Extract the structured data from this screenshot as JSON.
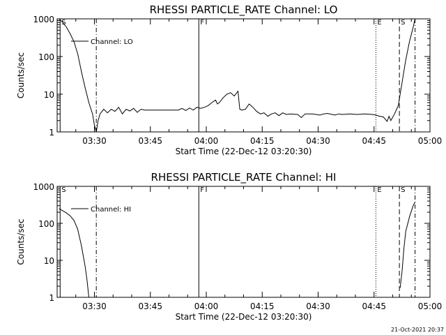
{
  "chart_data": [
    {
      "type": "line",
      "title": "RHESSI PARTICLE_RATE Channel: LO",
      "xlabel": "Start Time (22-Dec-12 03:20:30)",
      "ylabel": "Counts/sec",
      "yscale": "log",
      "ylim": [
        1,
        1000
      ],
      "xlim_minutes": [
        -0.5,
        99.5
      ],
      "x_tick_labels": [
        "03:30",
        "03:45",
        "04:00",
        "04:15",
        "04:30",
        "04:45",
        "05:00"
      ],
      "x_ticks_minutes": [
        9.5,
        24.5,
        39.5,
        54.5,
        69.5,
        84.5,
        99.5
      ],
      "y_tick_labels": [
        "1",
        "10",
        "100",
        "1000"
      ],
      "y_ticks": [
        1,
        10,
        100,
        1000
      ],
      "legend": {
        "label": "Channel: LO",
        "position": "top-left"
      },
      "markers": [
        {
          "label": "S",
          "x": 0.3,
          "style": "solid"
        },
        {
          "label": "",
          "x": 10.0,
          "style": "dashdot"
        },
        {
          "label": "F",
          "x": 37.5,
          "style": "solid"
        },
        {
          "label": "E",
          "x": 85.0,
          "style": "dotted"
        },
        {
          "label": "S",
          "x": 91.3,
          "style": "dashed"
        },
        {
          "label": "",
          "x": 95.5,
          "style": "dashdot"
        }
      ],
      "series": [
        {
          "name": "Channel: LO",
          "segments": [
            [
              [
                0,
                1000
              ],
              [
                1,
                800
              ],
              [
                2,
                600
              ],
              [
                3,
                400
              ],
              [
                4,
                250
              ],
              [
                5,
                120
              ],
              [
                6,
                40
              ],
              [
                7,
                15
              ],
              [
                8,
                6
              ],
              [
                9,
                3
              ],
              [
                9.5,
                1.5
              ],
              [
                10,
                1
              ],
              [
                10.5,
                2
              ],
              [
                11,
                3
              ],
              [
                12,
                4
              ],
              [
                13,
                3.2
              ],
              [
                14,
                4
              ],
              [
                15,
                3.5
              ],
              [
                16,
                4.5
              ],
              [
                17,
                3
              ],
              [
                18,
                4
              ],
              [
                19,
                3.6
              ],
              [
                20,
                4.2
              ],
              [
                21,
                3.3
              ],
              [
                22,
                4
              ],
              [
                23,
                3.8
              ],
              [
                24,
                3.8
              ],
              [
                26,
                3.8
              ],
              [
                28,
                3.8
              ],
              [
                30,
                3.8
              ],
              [
                32,
                3.8
              ],
              [
                33,
                4.2
              ],
              [
                34,
                3.7
              ],
              [
                35,
                4.3
              ],
              [
                36,
                3.8
              ],
              [
                37,
                4.5
              ],
              [
                38,
                4.2
              ],
              [
                39,
                4.5
              ],
              [
                40,
                5
              ],
              [
                41,
                6
              ],
              [
                42,
                7
              ],
              [
                42.5,
                5.5
              ],
              [
                43,
                6
              ],
              [
                44,
                8
              ],
              [
                45,
                10
              ],
              [
                46,
                11
              ],
              [
                47,
                9
              ],
              [
                48,
                12
              ],
              [
                48.5,
                4
              ],
              [
                49,
                3.8
              ],
              [
                50,
                4
              ],
              [
                51,
                5.5
              ],
              [
                52,
                4.5
              ],
              [
                53,
                3.5
              ],
              [
                54,
                3
              ],
              [
                55,
                3.2
              ],
              [
                56,
                2.6
              ],
              [
                57,
                3
              ],
              [
                58,
                3.2
              ],
              [
                59,
                2.7
              ],
              [
                60,
                3.2
              ],
              [
                61,
                2.9
              ],
              [
                62,
                3
              ],
              [
                64,
                2.9
              ],
              [
                65,
                2.4
              ],
              [
                66,
                3
              ],
              [
                68,
                3
              ],
              [
                70,
                2.8
              ],
              [
                71,
                3
              ],
              [
                72,
                3.1
              ],
              [
                74,
                2.8
              ],
              [
                75,
                3
              ],
              [
                76,
                2.9
              ],
              [
                78,
                3
              ],
              [
                80,
                2.9
              ],
              [
                82,
                3
              ],
              [
                84,
                2.9
              ],
              [
                85,
                2.8
              ],
              [
                86,
                2.6
              ],
              [
                87,
                2.5
              ],
              [
                88,
                1.9
              ],
              [
                88.5,
                2.6
              ],
              [
                89,
                2
              ],
              [
                90,
                3
              ],
              [
                91,
                5
              ],
              [
                92,
                20
              ],
              [
                93,
                80
              ],
              [
                94,
                250
              ],
              [
                95,
                600
              ],
              [
                95.5,
                1000
              ]
            ]
          ]
        }
      ]
    },
    {
      "type": "line",
      "title": "RHESSI PARTICLE_RATE Channel: HI",
      "xlabel": "Start Time (22-Dec-12 03:20:30)",
      "ylabel": "Counts/sec",
      "yscale": "log",
      "ylim": [
        1,
        1000
      ],
      "xlim_minutes": [
        -0.5,
        99.5
      ],
      "x_tick_labels": [
        "03:30",
        "03:45",
        "04:00",
        "04:15",
        "04:30",
        "04:45",
        "05:00"
      ],
      "x_ticks_minutes": [
        9.5,
        24.5,
        39.5,
        54.5,
        69.5,
        84.5,
        99.5
      ],
      "y_tick_labels": [
        "1",
        "10",
        "100",
        "1000"
      ],
      "y_ticks": [
        1,
        10,
        100,
        1000
      ],
      "legend": {
        "label": "Channel: HI",
        "position": "top-left"
      },
      "markers": [
        {
          "label": "S",
          "x": 0.3,
          "style": "solid"
        },
        {
          "label": "",
          "x": 10.0,
          "style": "dashdot"
        },
        {
          "label": "F",
          "x": 37.5,
          "style": "solid"
        },
        {
          "label": "E",
          "x": 85.0,
          "style": "dotted"
        },
        {
          "label": "S",
          "x": 91.3,
          "style": "dashed"
        },
        {
          "label": "",
          "x": 95.5,
          "style": "dashdot"
        }
      ],
      "series": [
        {
          "name": "Channel: HI",
          "segments": [
            [
              [
                0,
                250
              ],
              [
                1,
                220
              ],
              [
                2,
                190
              ],
              [
                3,
                160
              ],
              [
                4,
                120
              ],
              [
                5,
                70
              ],
              [
                6,
                25
              ],
              [
                7,
                7
              ],
              [
                7.5,
                3
              ],
              [
                8,
                1
              ]
            ],
            [
              [
                91.5,
                1.8
              ],
              [
                92,
                5
              ],
              [
                92.5,
                20
              ],
              [
                93,
                60
              ],
              [
                94,
                150
              ],
              [
                95,
                300
              ],
              [
                95.5,
                380
              ]
            ]
          ]
        }
      ]
    }
  ],
  "footer": {
    "timestamp": "21-Oct-2021 20:37"
  }
}
